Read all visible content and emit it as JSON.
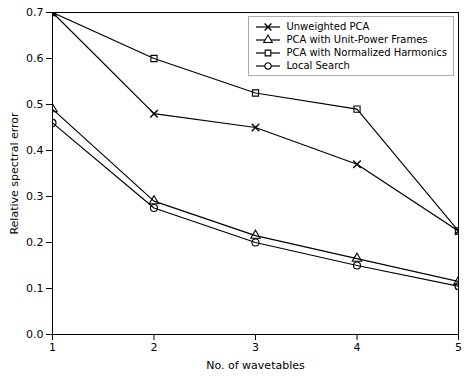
{
  "chart_data": {
    "type": "line",
    "x": [
      1,
      2,
      3,
      4,
      5
    ],
    "series": [
      {
        "name": "Unweighted PCA",
        "color": "#000000",
        "marker": "x",
        "values": [
          0.7,
          0.48,
          0.45,
          0.37,
          0.225
        ]
      },
      {
        "name": "PCA with Unit-Power Frames",
        "color": "#000000",
        "marker": "triangle",
        "values": [
          0.49,
          0.29,
          0.215,
          0.165,
          0.115
        ]
      },
      {
        "name": "PCA with Normalized Harmonics",
        "color": "#000000",
        "marker": "square",
        "values": [
          0.7,
          0.6,
          0.525,
          0.49,
          0.225
        ]
      },
      {
        "name": "Local Search",
        "color": "#000000",
        "marker": "circle",
        "values": [
          0.46,
          0.275,
          0.2,
          0.15,
          0.105
        ]
      }
    ],
    "xlabel": "No. of wavetables",
    "ylabel": "Relative spectral error",
    "xlim": [
      1,
      5
    ],
    "ylim": [
      0,
      0.7
    ],
    "xticks": [
      1,
      2,
      3,
      4,
      5
    ],
    "yticks": [
      {
        "value": 0,
        "label": "0.0"
      },
      0.1,
      0.2,
      0.3,
      0.4,
      0.5,
      0.6,
      0.7
    ],
    "legend": "upper right",
    "grid": false
  }
}
